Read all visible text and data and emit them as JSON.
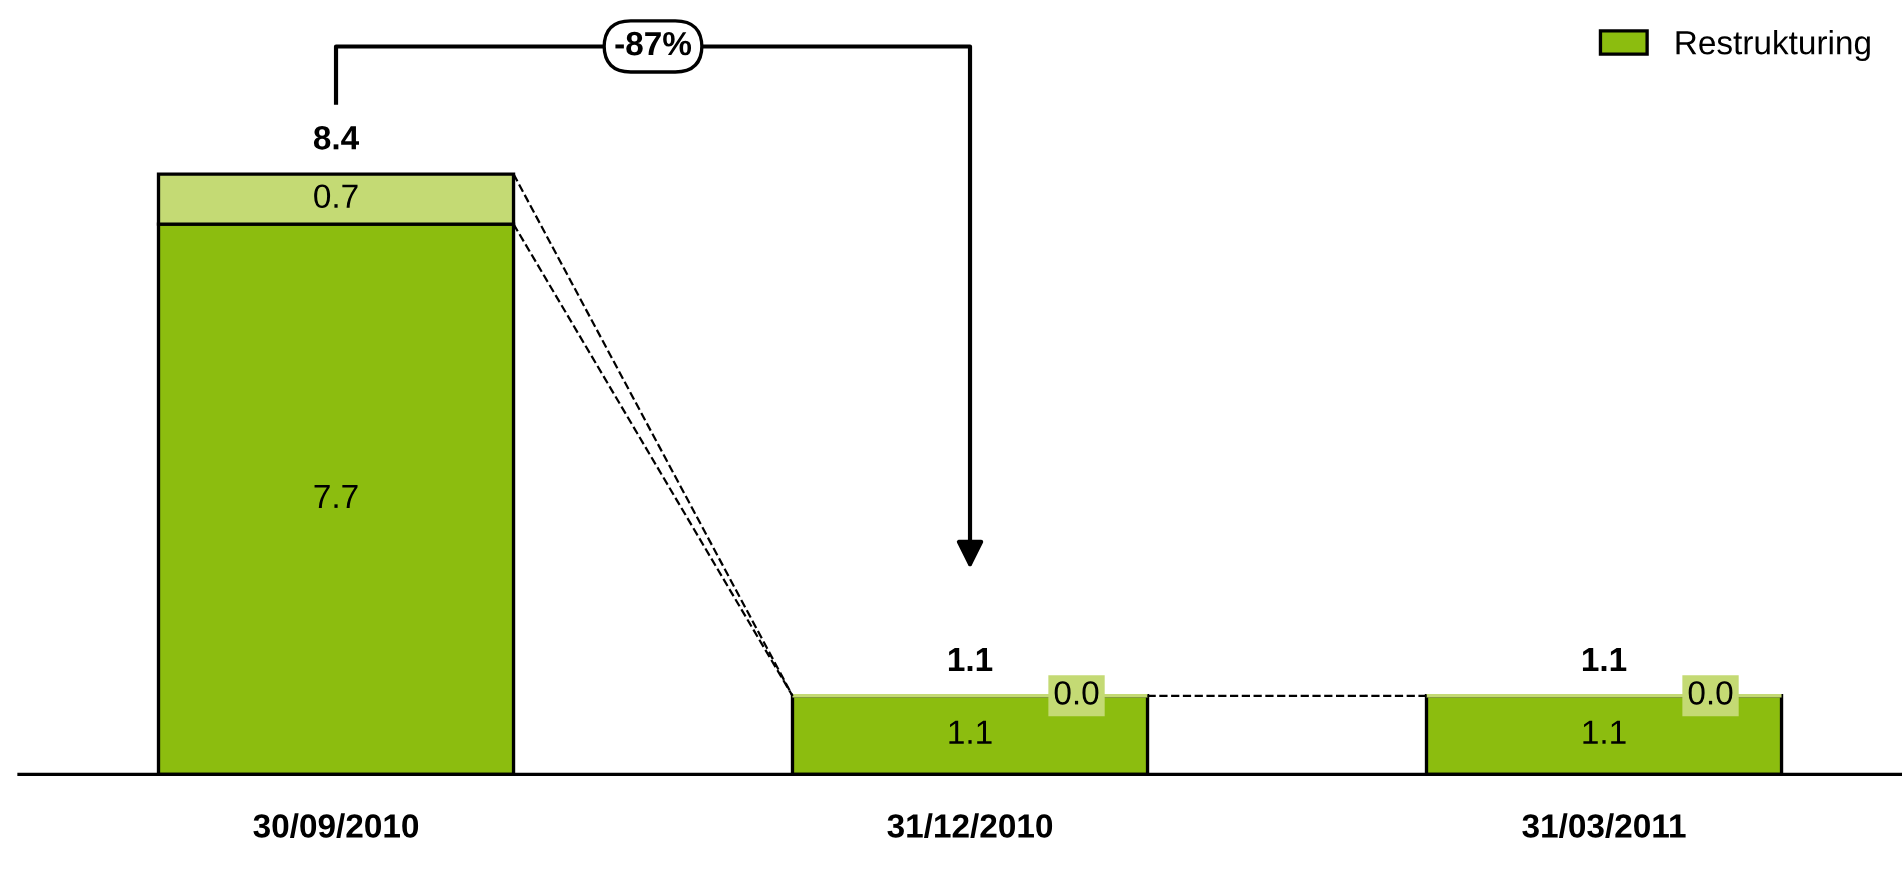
{
  "chart_data": {
    "type": "bar",
    "stacked": true,
    "categories": [
      "30/09/2010",
      "31/12/2010",
      "31/03/2011"
    ],
    "series": [
      {
        "name": "Restrukturing",
        "color": "#8cbd0f",
        "values": [
          7.7,
          1.1,
          1.1
        ]
      },
      {
        "color": "#c4da74",
        "values": [
          0.7,
          0.0,
          0.0
        ],
        "value_labels": [
          "0.7",
          "0.0",
          "0.0"
        ]
      }
    ],
    "tick_labels": "x",
    "data_labels": true,
    "totals": [
      "8.4",
      "1.1",
      "1.1"
    ],
    "annotations": [
      "-87%"
    ],
    "legend": "top right",
    "grid": false
  }
}
